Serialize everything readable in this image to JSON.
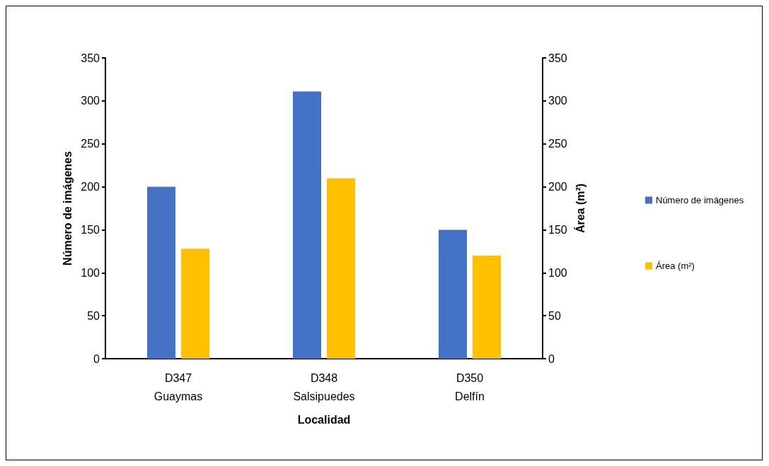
{
  "chart_data": {
    "type": "bar",
    "xlabel": "Localidad",
    "ylabel": "Número de imágenes",
    "y2label": "Área (m²)",
    "categories": [
      "D347\nGuaymas",
      "D348\nSalsipuedes",
      "D350\nDelfín"
    ],
    "series": [
      {
        "name": "Número de imágenes",
        "color": "#4472c4",
        "values": [
          200,
          311,
          150
        ]
      },
      {
        "name": "Área (m²)",
        "color": "#ffc000",
        "values": [
          128,
          210,
          120
        ],
        "axis": "y2"
      }
    ],
    "ylim": [
      0,
      350
    ],
    "yticks": [
      0,
      50,
      100,
      150,
      200,
      250,
      300,
      350
    ],
    "y2lim": [
      0,
      350
    ],
    "y2ticks": [
      0,
      50,
      100,
      150,
      200,
      250,
      300,
      350
    ],
    "grid": false,
    "legend": "right"
  }
}
